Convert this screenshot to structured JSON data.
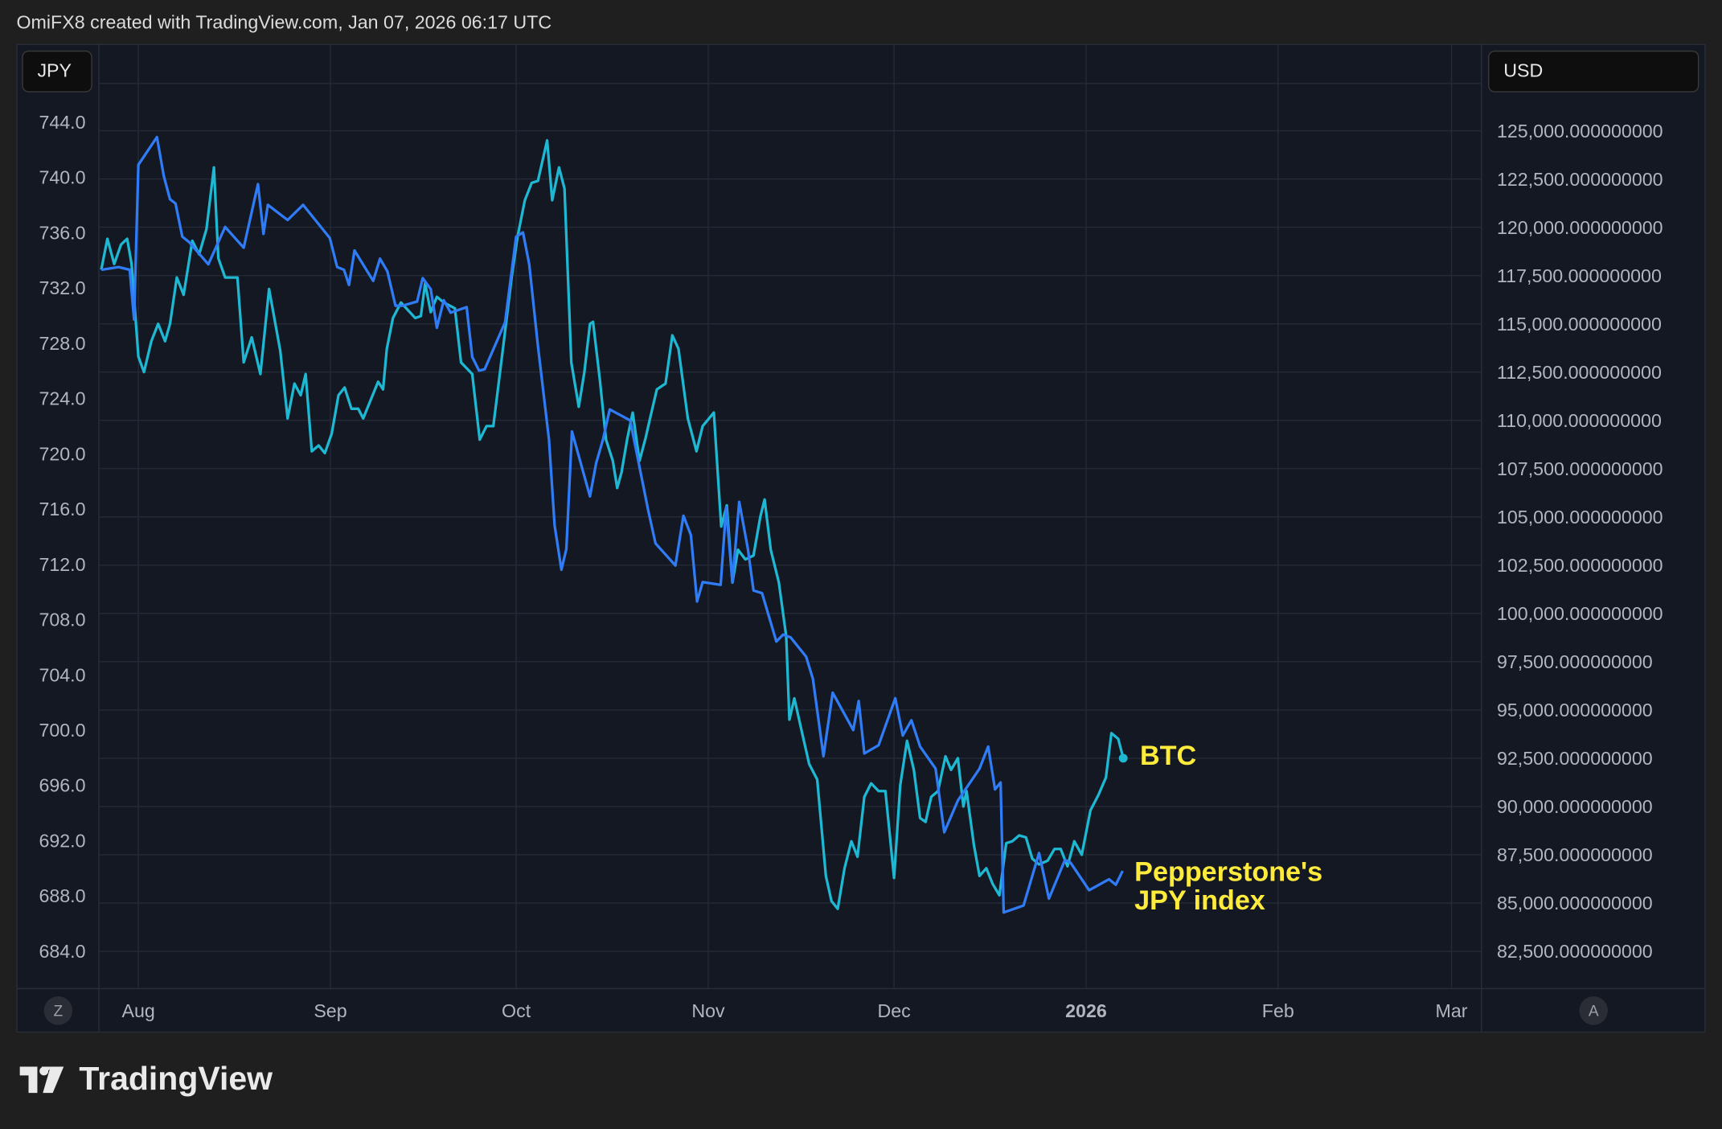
{
  "header": {
    "caption": "OmiFX8 created with TradingView.com, Jan 07, 2026 06:17 UTC"
  },
  "left_badge": "JPY",
  "right_badge": "USD",
  "scale_buttons": {
    "left": "Z",
    "right": "A"
  },
  "footer": {
    "brand": "TradingView"
  },
  "colors": {
    "jpy_line": "#2f7cf6",
    "btc_line": "#1fb8d3",
    "annotation": "#ffeb3b",
    "grid": "#242a38"
  },
  "chart_data": {
    "type": "line",
    "title": "",
    "x_unit": "days since Aug 1, 2025",
    "x_ticks": [
      {
        "label": "Aug",
        "day": 0
      },
      {
        "label": "Sep",
        "day": 31
      },
      {
        "label": "Oct",
        "day": 61
      },
      {
        "label": "Nov",
        "day": 92
      },
      {
        "label": "Dec",
        "day": 122
      },
      {
        "label": "2026",
        "day": 153,
        "bold": true
      },
      {
        "label": "Feb",
        "day": 184
      },
      {
        "label": "Mar",
        "day": 212
      }
    ],
    "left_axis": {
      "label": "JPY",
      "ylim": [
        682.4,
        747.4
      ],
      "ticks": [
        "744.0",
        "740.0",
        "736.0",
        "732.0",
        "728.0",
        "724.0",
        "720.0",
        "716.0",
        "712.0",
        "708.0",
        "704.0",
        "700.0",
        "696.0",
        "692.0",
        "688.0",
        "684.0"
      ],
      "tick_values": [
        744,
        740,
        736,
        732,
        728,
        724,
        720,
        716,
        712,
        708,
        704,
        700,
        696,
        692,
        688,
        684
      ]
    },
    "right_axis": {
      "label": "USD",
      "ticks": [
        "125,000.000000000",
        "122,500.000000000",
        "120,000.000000000",
        "117,500.000000000",
        "115,000.000000000",
        "112,500.000000000",
        "110,000.000000000",
        "107,500.000000000",
        "105,000.000000000",
        "102,500.000000000",
        "100,000.000000000",
        "97,500.000000000",
        "95,000.000000000",
        "92,500.000000000",
        "90,000.000000000",
        "87,500.000000000",
        "85,000.000000000",
        "82,500.000000000"
      ],
      "tick_values": [
        125000,
        122500,
        120000,
        117500,
        115000,
        112500,
        110000,
        107500,
        105000,
        102500,
        100000,
        97500,
        95000,
        92500,
        90000,
        87500,
        85000,
        82500
      ]
    },
    "series": [
      {
        "name": "Pepperstone's JPY index",
        "label_line1": "Pepperstone's",
        "label_line2": "JPY index",
        "axis": "left",
        "points": [
          [
            -6,
            733.3
          ],
          [
            -3.2,
            733.5
          ],
          [
            -1.4,
            733.3
          ],
          [
            -0.7,
            729.7
          ],
          [
            0,
            740.9
          ],
          [
            3,
            742.9
          ],
          [
            4.1,
            740.1
          ],
          [
            5.1,
            738.4
          ],
          [
            6,
            738.1
          ],
          [
            7.1,
            735.7
          ],
          [
            8.2,
            735.3
          ],
          [
            11.3,
            733.7
          ],
          [
            14,
            736.4
          ],
          [
            17,
            734.9
          ],
          [
            19.3,
            739.5
          ],
          [
            20.2,
            735.9
          ],
          [
            20.9,
            738
          ],
          [
            24.1,
            736.9
          ],
          [
            26.6,
            738
          ],
          [
            30.9,
            735.6
          ],
          [
            32.1,
            733.5
          ],
          [
            33.2,
            733.3
          ],
          [
            34,
            732.2
          ],
          [
            34.9,
            734.7
          ],
          [
            37.9,
            732.5
          ],
          [
            39,
            734.1
          ],
          [
            40.2,
            733.2
          ],
          [
            41.5,
            730.7
          ],
          [
            42.6,
            730.7
          ],
          [
            45,
            731
          ],
          [
            45.9,
            732.7
          ],
          [
            47.2,
            731.9
          ],
          [
            48.2,
            729.1
          ],
          [
            49.3,
            731.1
          ],
          [
            50.4,
            730.2
          ],
          [
            53,
            730.6
          ],
          [
            53.9,
            727
          ],
          [
            55,
            726
          ],
          [
            55.9,
            726.1
          ],
          [
            59.2,
            729.5
          ],
          [
            61,
            735.7
          ],
          [
            62.1,
            736
          ],
          [
            63.1,
            733.7
          ],
          [
            64.5,
            727.8
          ],
          [
            66.3,
            721
          ],
          [
            67.2,
            714.8
          ],
          [
            68.3,
            711.6
          ],
          [
            69.1,
            713.1
          ],
          [
            70,
            721.6
          ],
          [
            72.9,
            716.9
          ],
          [
            73.9,
            719.3
          ],
          [
            75,
            721
          ],
          [
            76.1,
            723.2
          ],
          [
            79.4,
            722.4
          ],
          [
            82.3,
            715.9
          ],
          [
            83.5,
            713.5
          ],
          [
            86.7,
            711.9
          ],
          [
            88,
            715.5
          ],
          [
            89.2,
            714.1
          ],
          [
            90.2,
            709.3
          ],
          [
            91.1,
            710.7
          ],
          [
            94,
            710.5
          ],
          [
            94.9,
            716.1
          ],
          [
            95.9,
            710.7
          ],
          [
            97,
            716.5
          ],
          [
            98.4,
            713.1
          ],
          [
            99.3,
            710.1
          ],
          [
            100.7,
            709.9
          ],
          [
            103,
            706.4
          ],
          [
            104.1,
            706.9
          ],
          [
            105.3,
            706.7
          ],
          [
            107.8,
            705.3
          ],
          [
            108.9,
            703.7
          ],
          [
            110.6,
            698.1
          ],
          [
            112.1,
            702.7
          ],
          [
            115.4,
            700
          ],
          [
            116.3,
            702.1
          ],
          [
            117.2,
            698.3
          ],
          [
            119.5,
            698.9
          ],
          [
            122.2,
            702.3
          ],
          [
            123.4,
            699.6
          ],
          [
            124.8,
            700.7
          ],
          [
            126.2,
            698.8
          ],
          [
            128.7,
            697.2
          ],
          [
            130.1,
            692.6
          ],
          [
            132.3,
            694.9
          ],
          [
            135.8,
            697.2
          ],
          [
            137.2,
            698.8
          ],
          [
            138.3,
            695.7
          ],
          [
            139.2,
            696.2
          ],
          [
            139.7,
            686.8
          ],
          [
            142.9,
            687.3
          ],
          [
            145.4,
            691.1
          ],
          [
            147,
            687.8
          ],
          [
            149.6,
            690.6
          ],
          [
            150.5,
            690.4
          ],
          [
            152.3,
            689.2
          ],
          [
            153.5,
            688.4
          ],
          [
            156.7,
            689.2
          ],
          [
            157.8,
            688.8
          ],
          [
            158.9,
            689.8
          ]
        ]
      },
      {
        "name": "BTC",
        "label_line1": "BTC",
        "axis": "right",
        "points": [
          [
            -6,
            117800
          ],
          [
            -5,
            119400
          ],
          [
            -3.9,
            118100
          ],
          [
            -2.8,
            119100
          ],
          [
            -1.8,
            119400
          ],
          [
            -1.1,
            118100
          ],
          [
            0,
            113300
          ],
          [
            0.9,
            112500
          ],
          [
            2.1,
            114100
          ],
          [
            3.2,
            115000
          ],
          [
            4.3,
            114100
          ],
          [
            5.1,
            115000
          ],
          [
            6.2,
            117400
          ],
          [
            7.3,
            116500
          ],
          [
            8.7,
            119300
          ],
          [
            9.8,
            118600
          ],
          [
            11,
            119900
          ],
          [
            12.2,
            123100
          ],
          [
            12.9,
            118400
          ],
          [
            14,
            117400
          ],
          [
            16,
            117400
          ],
          [
            17,
            113000
          ],
          [
            18.3,
            114300
          ],
          [
            19.7,
            112400
          ],
          [
            21.1,
            116800
          ],
          [
            22.9,
            113600
          ],
          [
            24.1,
            110100
          ],
          [
            25.2,
            111900
          ],
          [
            26.2,
            111300
          ],
          [
            27,
            112400
          ],
          [
            28,
            108400
          ],
          [
            29.1,
            108700
          ],
          [
            30.1,
            108300
          ],
          [
            31.2,
            109300
          ],
          [
            32.3,
            111300
          ],
          [
            33.3,
            111700
          ],
          [
            34.4,
            110600
          ],
          [
            35.5,
            110600
          ],
          [
            36.3,
            110100
          ],
          [
            38.7,
            112000
          ],
          [
            39.5,
            111600
          ],
          [
            40.1,
            113700
          ],
          [
            41.1,
            115300
          ],
          [
            42.4,
            116100
          ],
          [
            44.7,
            115300
          ],
          [
            45.6,
            115400
          ],
          [
            46.3,
            117100
          ],
          [
            47.2,
            115600
          ],
          [
            48.2,
            116400
          ],
          [
            49.3,
            116100
          ],
          [
            51.1,
            115800
          ],
          [
            52.1,
            113000
          ],
          [
            53.9,
            112400
          ],
          [
            55.1,
            109000
          ],
          [
            56.2,
            109700
          ],
          [
            57.3,
            109700
          ],
          [
            59,
            114100
          ],
          [
            60.3,
            117500
          ],
          [
            61.2,
            119500
          ],
          [
            62.4,
            121400
          ],
          [
            63.5,
            122300
          ],
          [
            64.5,
            122400
          ],
          [
            66,
            124500
          ],
          [
            66.8,
            121400
          ],
          [
            67.9,
            123100
          ],
          [
            68.8,
            122000
          ],
          [
            69.9,
            113000
          ],
          [
            71.1,
            110700
          ],
          [
            72,
            112500
          ],
          [
            72.9,
            115000
          ],
          [
            73.4,
            115100
          ],
          [
            74.5,
            112100
          ],
          [
            75.5,
            109000
          ],
          [
            76.6,
            107900
          ],
          [
            77.3,
            106500
          ],
          [
            78,
            107300
          ],
          [
            78.9,
            109000
          ],
          [
            79.8,
            110400
          ],
          [
            80.9,
            107900
          ],
          [
            81.9,
            109100
          ],
          [
            82.6,
            110100
          ],
          [
            83.7,
            111600
          ],
          [
            85.1,
            111900
          ],
          [
            86.2,
            114400
          ],
          [
            87.2,
            113700
          ],
          [
            88.7,
            110100
          ],
          [
            90.1,
            108400
          ],
          [
            91.1,
            109700
          ],
          [
            92.9,
            110400
          ],
          [
            94.1,
            104500
          ],
          [
            95,
            105600
          ],
          [
            95.9,
            101600
          ],
          [
            96.8,
            103300
          ],
          [
            98,
            102800
          ],
          [
            99.3,
            103000
          ],
          [
            100.4,
            105000
          ],
          [
            101.1,
            105900
          ],
          [
            102.1,
            103300
          ],
          [
            103.4,
            101600
          ],
          [
            104.6,
            98800
          ],
          [
            105.1,
            94500
          ],
          [
            105.9,
            95600
          ],
          [
            107.1,
            93900
          ],
          [
            108.3,
            92200
          ],
          [
            109.6,
            91400
          ],
          [
            111,
            86400
          ],
          [
            111.9,
            85100
          ],
          [
            112.9,
            84700
          ],
          [
            114,
            86800
          ],
          [
            115.1,
            88200
          ],
          [
            116.1,
            87400
          ],
          [
            117.2,
            90500
          ],
          [
            118.3,
            91200
          ],
          [
            119.5,
            90800
          ],
          [
            120.6,
            90800
          ],
          [
            122,
            86300
          ],
          [
            123,
            91100
          ],
          [
            124.1,
            93400
          ],
          [
            125.2,
            91900
          ],
          [
            126.2,
            89400
          ],
          [
            127.1,
            89200
          ],
          [
            128,
            90500
          ],
          [
            129.1,
            90800
          ],
          [
            130.3,
            92600
          ],
          [
            131.2,
            91900
          ],
          [
            132.3,
            92500
          ],
          [
            133.2,
            90000
          ],
          [
            133.7,
            90800
          ],
          [
            134.9,
            88000
          ],
          [
            135.8,
            86400
          ],
          [
            136.9,
            86800
          ],
          [
            137.9,
            86000
          ],
          [
            139,
            85400
          ],
          [
            140.1,
            88100
          ],
          [
            141.1,
            88200
          ],
          [
            142.2,
            88500
          ],
          [
            143.3,
            88400
          ],
          [
            144.3,
            87300
          ],
          [
            145.4,
            87000
          ],
          [
            146.8,
            87200
          ],
          [
            147.9,
            87800
          ],
          [
            148.9,
            87800
          ],
          [
            150,
            86900
          ],
          [
            151.1,
            88200
          ],
          [
            152.3,
            87500
          ],
          [
            153.7,
            89800
          ],
          [
            155,
            90600
          ],
          [
            156.2,
            91500
          ],
          [
            157.1,
            93800
          ],
          [
            158.2,
            93500
          ],
          [
            159,
            92500
          ]
        ]
      }
    ],
    "grid": true,
    "legend": "inline labels at line ends"
  }
}
